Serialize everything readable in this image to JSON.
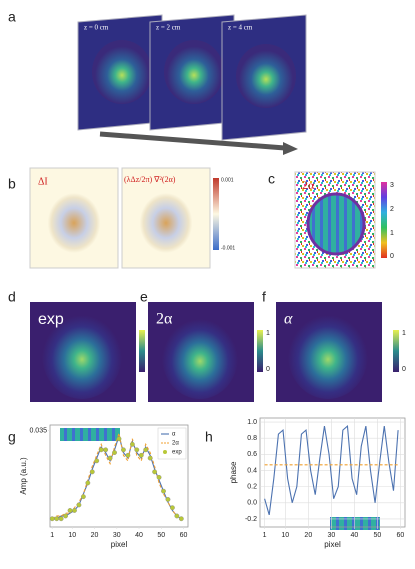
{
  "panel_labels": [
    "a",
    "b",
    "c",
    "d",
    "e",
    "f",
    "g",
    "h"
  ],
  "slices": [
    "z = 0 cm",
    "z = 2 cm",
    "z = 4 cm"
  ],
  "panel_b": {
    "titles": [
      "ΔI",
      "(λΔz/2π) ∇²(2α)"
    ],
    "colorbar_ticks": [
      0.001,
      -0.001
    ]
  },
  "panel_c": {
    "title": "2α",
    "colorbar_ticks": [
      3,
      2,
      1,
      0
    ]
  },
  "panel_def": {
    "titles": [
      "exp",
      "2α",
      "α"
    ],
    "colorbar_ticks": [
      1,
      0
    ]
  },
  "chart_data": [
    {
      "type": "line",
      "x_label": "pixel",
      "y_label": "Amp (a.u.)",
      "x": [
        1,
        3,
        5,
        7,
        9,
        11,
        13,
        15,
        17,
        19,
        21,
        23,
        25,
        27,
        29,
        31,
        33,
        35,
        37,
        39,
        41,
        43,
        45,
        47,
        49,
        51,
        53,
        55,
        57,
        59
      ],
      "xlim": [
        0,
        62
      ],
      "xticks": [
        1,
        10,
        20,
        30,
        40,
        50,
        60
      ],
      "ylim": [
        0,
        0.037
      ],
      "yticks": [
        0.035
      ],
      "legend": "upper right",
      "grid": false,
      "series": [
        {
          "name": "α",
          "color": "#4c72b0",
          "style": "solid",
          "values": [
            0.003,
            0.003,
            0.004,
            0.004,
            0.005,
            0.006,
            0.008,
            0.012,
            0.016,
            0.021,
            0.025,
            0.029,
            0.027,
            0.024,
            0.028,
            0.033,
            0.027,
            0.025,
            0.031,
            0.027,
            0.025,
            0.029,
            0.026,
            0.021,
            0.017,
            0.013,
            0.009,
            0.006,
            0.004,
            0.003
          ]
        },
        {
          "name": "2α",
          "color": "#f0a030",
          "style": "dashed",
          "values": [
            0.003,
            0.004,
            0.004,
            0.005,
            0.005,
            0.007,
            0.009,
            0.012,
            0.017,
            0.022,
            0.026,
            0.03,
            0.026,
            0.023,
            0.029,
            0.034,
            0.026,
            0.024,
            0.032,
            0.026,
            0.024,
            0.03,
            0.027,
            0.022,
            0.016,
            0.012,
            0.009,
            0.006,
            0.004,
            0.003
          ]
        },
        {
          "name": "exp",
          "color": "#b8c838",
          "style": "markers",
          "values": [
            0.003,
            0.003,
            0.003,
            0.004,
            0.006,
            0.006,
            0.008,
            0.011,
            0.016,
            0.02,
            0.024,
            0.028,
            0.028,
            0.025,
            0.027,
            0.032,
            0.028,
            0.026,
            0.03,
            0.028,
            0.026,
            0.028,
            0.025,
            0.02,
            0.018,
            0.013,
            0.01,
            0.007,
            0.004,
            0.003
          ]
        }
      ]
    },
    {
      "type": "line",
      "x_label": "pixel",
      "y_label": "phase",
      "x": [
        1,
        3,
        5,
        7,
        9,
        11,
        13,
        15,
        17,
        19,
        21,
        23,
        25,
        27,
        29,
        31,
        33,
        35,
        37,
        39,
        41,
        43,
        45,
        47,
        49,
        51,
        53,
        55,
        57,
        59
      ],
      "xlim": [
        -1,
        62
      ],
      "xticks": [
        1,
        10,
        20,
        30,
        40,
        50,
        60
      ],
      "ylim": [
        -0.3,
        1.05
      ],
      "yticks": [
        -0.2,
        {
          "value": 0,
          "label": "0.0"
        },
        0.2,
        0.4,
        0.6,
        0.8,
        {
          "value": 1,
          "label": "1.0"
        }
      ],
      "grid": true,
      "series": [
        {
          "color": "#4c72b0",
          "style": "solid",
          "values": [
            0.05,
            -0.15,
            0.3,
            0.85,
            0.9,
            0.3,
            0.0,
            0.2,
            0.85,
            0.9,
            0.4,
            0.1,
            0.55,
            0.95,
            0.6,
            0.05,
            0.2,
            0.9,
            0.95,
            0.3,
            0.1,
            0.7,
            0.95,
            0.4,
            0.0,
            0.5,
            0.95,
            0.5,
            0.15,
            0.9
          ]
        },
        {
          "color": "#f0a030",
          "style": "dashed",
          "values": [
            0.47,
            0.47,
            0.47,
            0.47,
            0.47,
            0.47,
            0.47,
            0.47,
            0.47,
            0.47,
            0.47,
            0.47,
            0.47,
            0.47,
            0.47,
            0.47,
            0.47,
            0.47,
            0.47,
            0.47,
            0.47,
            0.47,
            0.47,
            0.47,
            0.47,
            0.47,
            0.47,
            0.47,
            0.47,
            0.47
          ]
        }
      ]
    }
  ]
}
